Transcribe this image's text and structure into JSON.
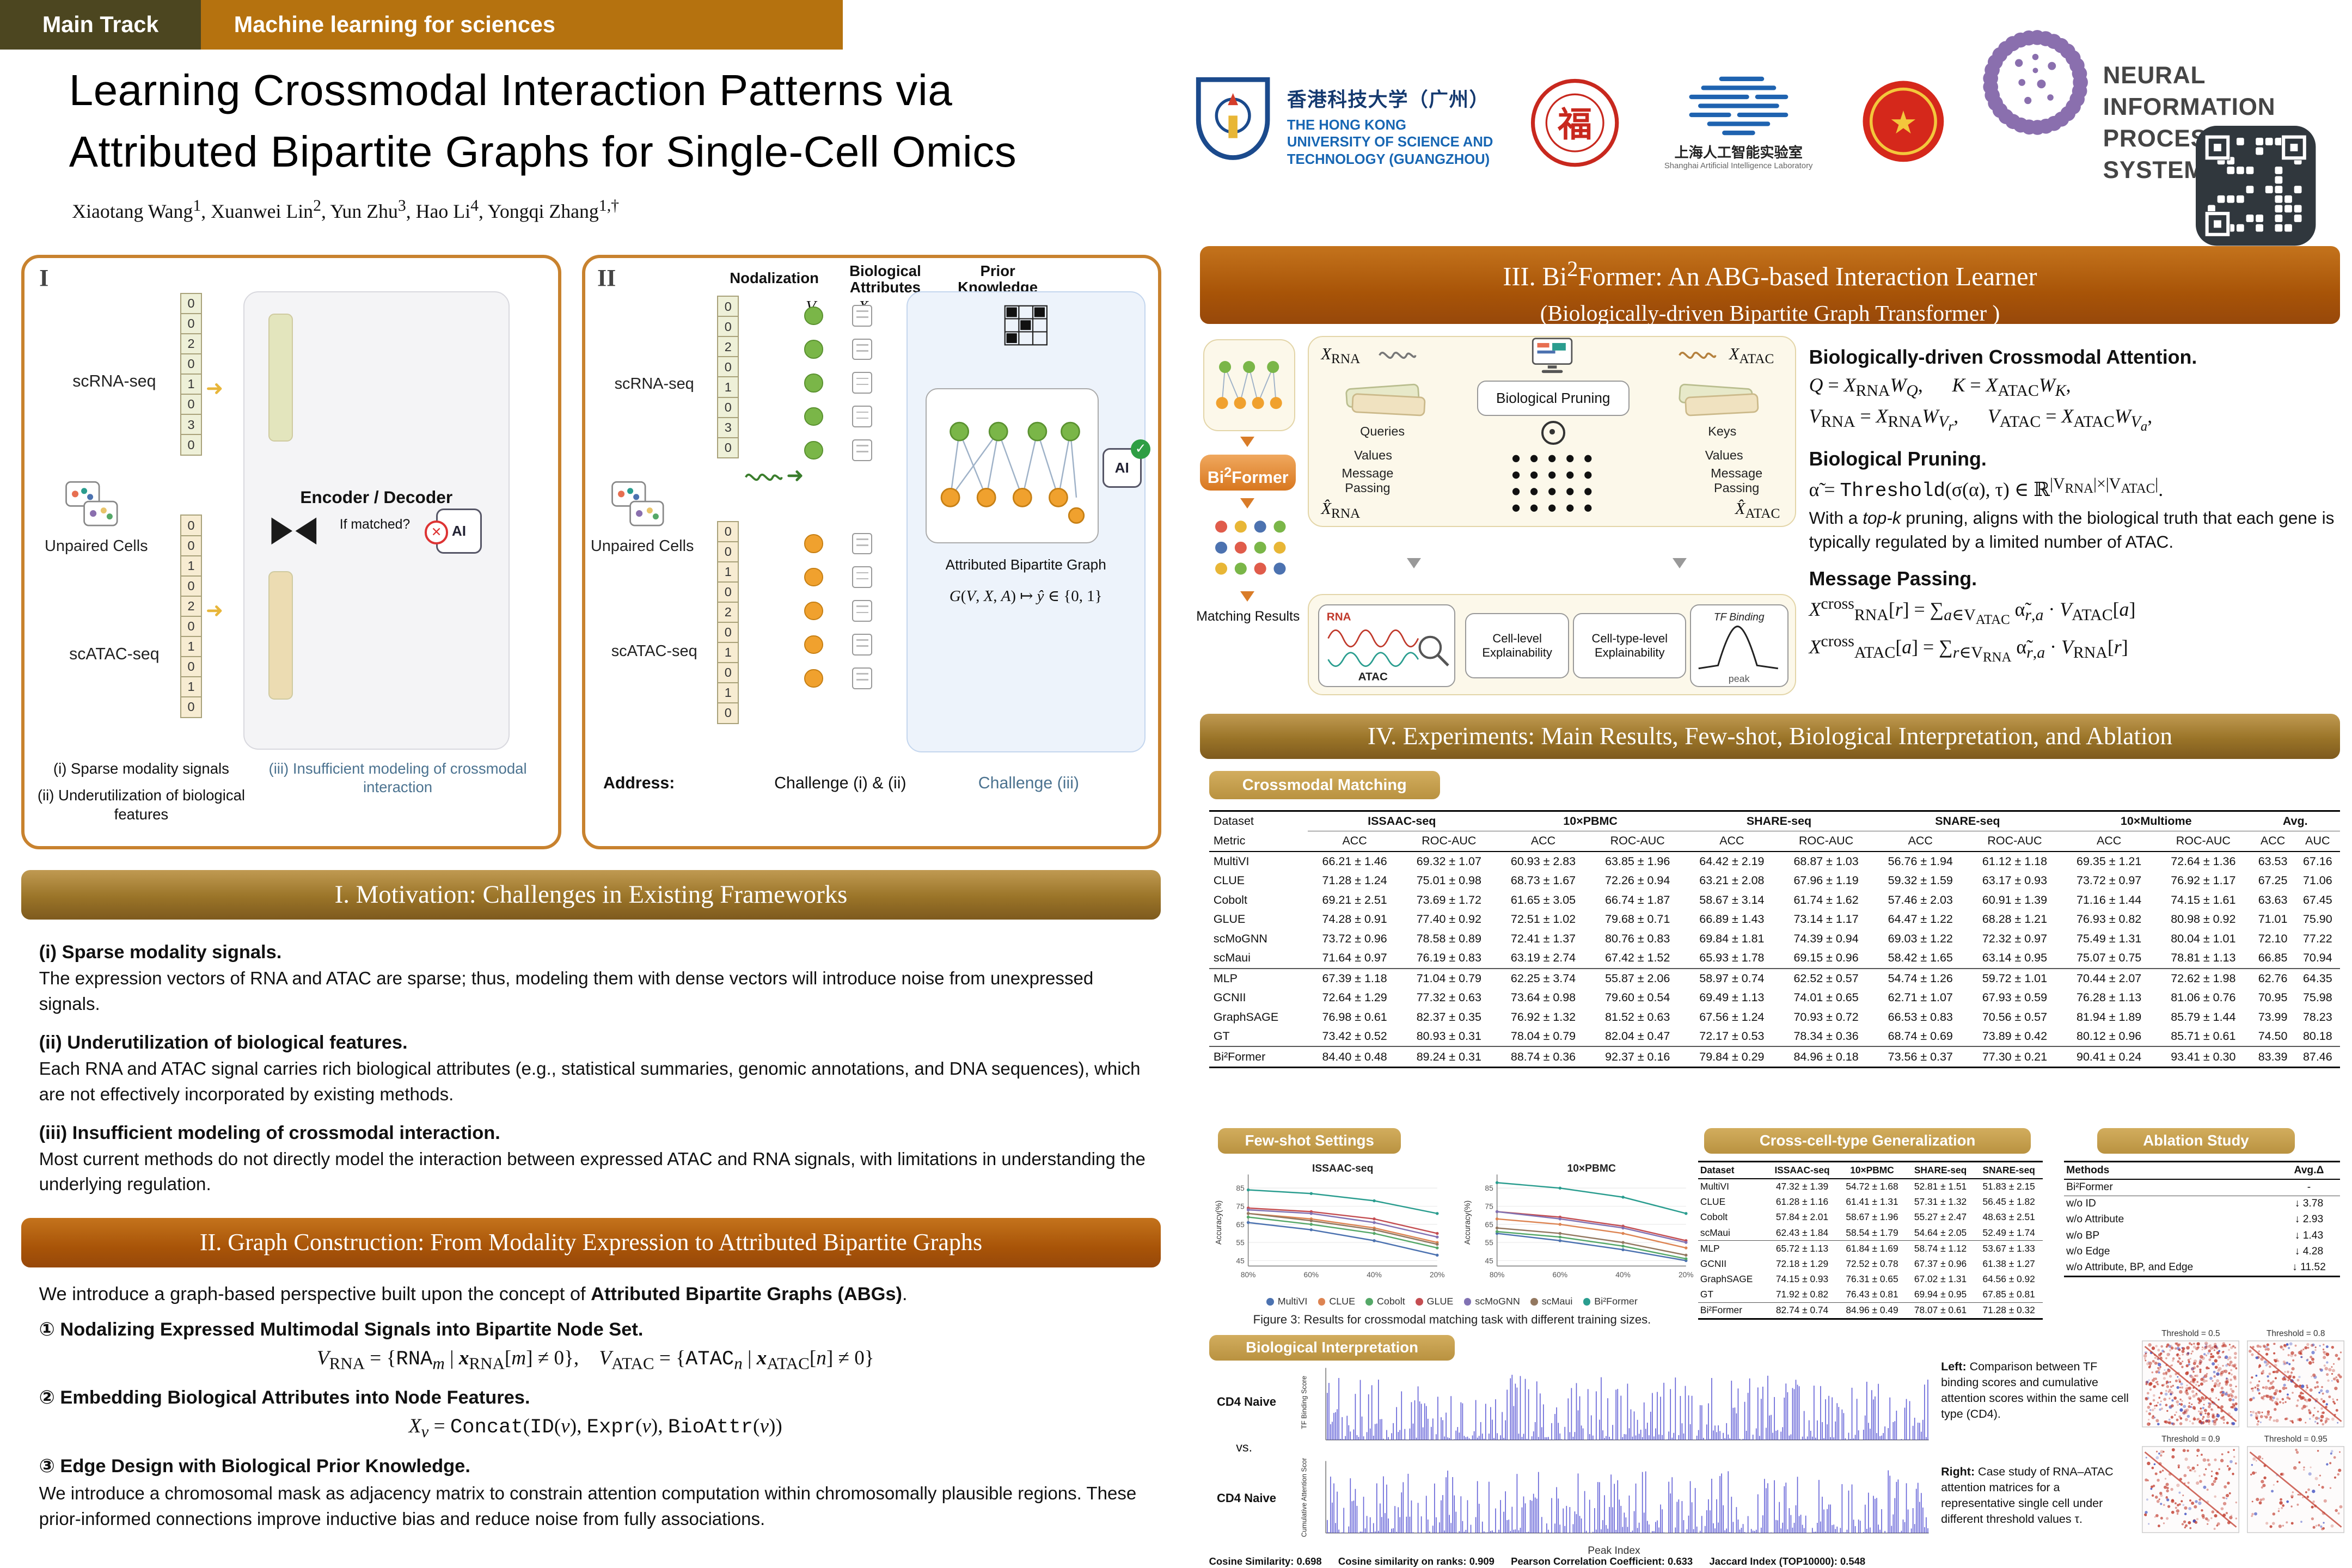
{
  "meta": {
    "accent_bronze": "#9a7428",
    "accent_rust": "#a85408",
    "badge_tan": "#c9a456",
    "signal_blue": "#3d3bcd",
    "heat_red": "#c0392b",
    "heat_blue": "#3b4cc0"
  },
  "header": {
    "track_badge": "Main Track",
    "topic_badge": "Machine learning for sciences",
    "title_line1": "Learning Crossmodal Interaction Patterns via",
    "title_line2": "Attributed Bipartite Graphs for Single-Cell Omics",
    "authors_html": "Xiaotang Wang<sup>1</sup>, Xuanwei Lin<sup>2</sup>, Yun Zhu<sup>3</sup>, Hao Li<sup>4</sup>, Yongqi Zhang<sup>1,†</sup>",
    "hkust": {
      "cn": "香港科技大学（广州）",
      "en1": "THE HONG KONG",
      "en2": "UNIVERSITY OF SCIENCE AND",
      "en3": "TECHNOLOGY (GUANGZHOU)"
    },
    "shailab": {
      "cn": "上海人工智能实验室",
      "en": "Shanghai Artificial Intelligence Laboratory"
    },
    "neurips": {
      "line1": "NEURAL INFORMATION",
      "line2": "PROCESSING SYSTEMS"
    }
  },
  "panel1": {
    "numeral": "I",
    "rna_label": "scRNA-seq",
    "atac_label": "scATAC-seq",
    "unpaired_label": "Unpaired Cells",
    "rna_vector": [
      "0",
      "0",
      "2",
      "0",
      "1",
      "0",
      "3",
      "0"
    ],
    "atac_vector": [
      "0",
      "0",
      "1",
      "0",
      "2",
      "0",
      "1",
      "0",
      "1",
      "0"
    ],
    "encoder_label": "Encoder / Decoder",
    "if_matched": "If matched?",
    "ai_label": "AI",
    "captions": {
      "c1": "(i) Sparse modality signals",
      "c2": "(ii) Underutilization of biological features",
      "c3": "(iii) Insufficient modeling of crossmodal interaction"
    }
  },
  "panel2": {
    "numeral": "II",
    "col1": "Nodalization",
    "col2a": "Biological",
    "col2b": "Attributes",
    "col3a": "Prior",
    "col3b": "Knowledge",
    "v_label": "V",
    "x_label": "X",
    "a_label": "A",
    "rna_label": "scRNA-seq",
    "atac_label": "scATAC-seq",
    "unpaired_label": "Unpaired Cells",
    "rna_vector": [
      "0",
      "0",
      "2",
      "0",
      "1",
      "0",
      "3",
      "0"
    ],
    "atac_vector": [
      "0",
      "0",
      "1",
      "0",
      "2",
      "0",
      "1",
      "0",
      "1",
      "0"
    ],
    "abg_label": "Attributed Bipartite Graph",
    "mapping_html": "<i>G</i>(<i>V</i>, <i>X</i>, <i>A</i>) ↦ <i>ŷ</i> ∈ {0, 1}",
    "ai_label": "AI",
    "address_label": "Address:",
    "challenge12": "Challenge (i) & (ii)",
    "challenge3": "Challenge (iii)"
  },
  "motivation": {
    "title": "I. Motivation: Challenges in Existing Frameworks",
    "items": [
      {
        "head": "(i)   Sparse modality signals.",
        "body": "The expression vectors of RNA and ATAC are sparse; thus, modeling them with dense vectors will introduce noise from unexpressed signals."
      },
      {
        "head": "(ii) Underutilization of biological features.",
        "body": "Each RNA and ATAC signal carries rich biological attributes (e.g., statistical summaries, genomic annotations, and DNA sequences), which are not effectively incorporated by existing methods."
      },
      {
        "head": "(iii) Insufficient modeling of crossmodal interaction.",
        "body": "Most current methods do not directly model the interaction between expressed ATAC and RNA signals, with limitations in understanding the underlying regulation."
      }
    ]
  },
  "graph_construction": {
    "title": "II. Graph Construction: From Modality Expression to Attributed Bipartite Graphs",
    "intro_html": "We introduce a graph-based perspective built upon the concept of <b>Attributed Bipartite Graphs (ABGs)</b>.",
    "steps": [
      {
        "num": "①",
        "head": "Nodalizing Expressed Multimodal Signals into Bipartite Node Set.",
        "formula_html": "<i>V</i><sub>RNA</sub> = {<span class='mono'>RNA</span><sub><i>m</i></sub> | <b><i>x</i></b><sub>RNA</sub>[<i>m</i>] ≠ 0},&emsp;<i>V</i><sub>ATAC</sub> = {<span class='mono'>ATAC</span><sub><i>n</i></sub> | <b><i>x</i></b><sub>ATAC</sub>[<i>n</i>] ≠ 0}"
      },
      {
        "num": "②",
        "head": "Embedding Biological Attributes into Node Features.",
        "formula_html": "<i>X</i><sub><i>v</i></sub> = <span class='mono'>Concat</span>(<span class='mono'>ID</span>(<i>v</i>), <span class='mono'>Expr</span>(<i>v</i>), <span class='mono'>BioAttr</span>(<i>v</i>))"
      },
      {
        "num": "③",
        "head": "Edge Design with Biological Prior Knowledge.",
        "body": "We introduce a chromosomal mask as adjacency matrix to constrain attention computation within chromosomally plausible regions. These prior-informed connections improve inductive bias and reduce noise from fully associations."
      }
    ]
  },
  "bi2former": {
    "title_line1_html": "III. Bi<sup>2</sup>Former: An ABG-based Interaction Learner",
    "title_line2": "(Biologically-driven Bipartite Graph Transformer )",
    "badge_html": "Bi<sup>2</sup>Former",
    "matching_results": "Matching Results",
    "x_rna_html": "<i>X</i><sub>RNA</sub>",
    "x_atac_html": "<i>X</i><sub>ATAC</sub>",
    "pruning_box": "Biological Pruning",
    "queries": "Queries",
    "keys": "Keys",
    "values_left": "Values",
    "values_right": "Values",
    "mp_left": "Message Passing",
    "mp_right": "Message Passing",
    "xhat_rna_html": "<i>X̂</i><sub>RNA</sub>",
    "xhat_atac_html": "<i>X̂</i><sub>ATAC</sub>",
    "rna_chart": "RNA",
    "atac_chart": "ATAC",
    "cell_level": "Cell-level Explainability",
    "cell_type_level": "Cell-type-level Explainability",
    "tf_binding": "TF Binding",
    "peak": "peak",
    "attention": {
      "head1": "Biologically-driven Crossmodal Attention.",
      "f1_html": "<i>Q</i> = <i>X</i><sub>RNA</sub><i>W</i><sub><i>Q</i></sub>,&emsp;&ensp;<i>K</i> = <i>X</i><sub>ATAC</sub><i>W</i><sub><i>K</i></sub>,",
      "f2_html": "<i>V</i><sub>RNA</sub> = <i>X</i><sub>RNA</sub><i>W</i><sub><i>V<sub>r</sub></i></sub>,&emsp;&ensp;<i>V</i><sub>ATAC</sub> = <i>X</i><sub>ATAC</sub><i>W</i><sub><i>V<sub>a</sub></i></sub>,",
      "head2": "Biological Pruning.",
      "f3_html": "α̃ = <span class='mono'>Threshold</span>(σ(α), τ) ∈ ℝ<sup>|V<sub>RNA</sub>|×|V<sub>ATAC</sub>|</sup>.",
      "body2_html": "With a <i>top-k</i> pruning, aligns with the biological truth that each gene is typically regulated by a limited number of ATAC.",
      "head3": "Message Passing.",
      "f4_html": "<i>X</i><sup>cross</sup><sub>RNA</sub>[<i>r</i>] = ∑<sub><i>a</i>∈V<sub>ATAC</sub></sub> α̃<sub><i>r</i>,<i>a</i></sub> · <i>V</i><sub>ATAC</sub>[<i>a</i>]",
      "f5_html": "<i>X</i><sup>cross</sup><sub>ATAC</sub>[<i>a</i>] = ∑<sub><i>r</i>∈V<sub>RNA</sub></sub> α̃<sub><i>r</i>,<i>a</i></sub> · <i>V</i><sub>RNA</sub>[<i>r</i>]"
    }
  },
  "experiments": {
    "title": "IV. Experiments: Main Results, Few-shot, Biological Interpretation, and Ablation",
    "crossmodal_badge": "Crossmodal Matching",
    "main_table": {
      "corner1": "Dataset",
      "corner2": "Metric",
      "datasets": [
        "ISSAAC-seq",
        "10×PBMC",
        "SHARE-seq",
        "SNARE-seq",
        "10×Multiome"
      ],
      "avg_label": "Avg.",
      "metrics": [
        "ACC",
        "ROC-AUC"
      ],
      "avg_metrics": [
        "ACC",
        "AUC"
      ],
      "groups": [
        {
          "rows": [
            {
              "name": "MultiVI",
              "vals": [
                "66.21 ± 1.46",
                "69.32 ± 1.07",
                "60.93 ± 2.83",
                "63.85 ± 1.96",
                "64.42 ± 2.19",
                "68.87 ± 1.03",
                "56.76 ± 1.94",
                "61.12 ± 1.18",
                "69.35 ± 1.21",
                "72.64 ± 1.36",
                "63.53",
                "67.16"
              ]
            },
            {
              "name": "CLUE",
              "vals": [
                "71.28 ± 1.24",
                "75.01 ± 0.98",
                "68.73 ± 1.67",
                "72.26 ± 0.94",
                "63.21 ± 2.08",
                "67.96 ± 1.19",
                "59.32 ± 1.59",
                "63.17 ± 0.93",
                "73.72 ± 0.97",
                "76.92 ± 1.17",
                "67.25",
                "71.06"
              ]
            },
            {
              "name": "Cobolt",
              "vals": [
                "69.21 ± 2.51",
                "73.69 ± 1.72",
                "61.65 ± 3.05",
                "66.74 ± 1.87",
                "58.67 ± 3.14",
                "61.74 ± 1.62",
                "57.46 ± 2.03",
                "60.91 ± 1.39",
                "71.16 ± 1.44",
                "74.15 ± 1.61",
                "63.63",
                "67.45"
              ]
            },
            {
              "name": "GLUE",
              "vals": [
                "74.28 ± 0.91",
                "77.40 ± 0.92",
                "72.51 ± 1.02",
                "79.68 ± 0.71",
                "66.89 ± 1.43",
                "73.14 ± 1.17",
                "64.47 ± 1.22",
                "68.28 ± 1.21",
                "76.93 ± 0.82",
                "80.98 ± 0.92",
                "71.01",
                "75.90"
              ]
            },
            {
              "name": "scMoGNN",
              "vals": [
                "73.72 ± 0.96",
                "78.58 ± 0.89",
                "72.41 ± 1.37",
                "80.76 ± 0.83",
                "69.84 ± 1.81",
                "74.39 ± 0.94",
                "69.03 ± 1.22",
                "72.32 ± 0.97",
                "75.49 ± 1.31",
                "80.04 ± 1.01",
                "72.10",
                "77.22"
              ]
            },
            {
              "name": "scMaui",
              "vals": [
                "71.64 ± 0.97",
                "76.19 ± 0.83",
                "63.19 ± 2.74",
                "67.42 ± 1.52",
                "65.93 ± 1.78",
                "69.15 ± 0.96",
                "58.42 ± 1.65",
                "63.14 ± 0.95",
                "75.07 ± 0.75",
                "78.81 ± 1.13",
                "66.85",
                "70.94"
              ]
            }
          ]
        },
        {
          "rows": [
            {
              "name": "MLP",
              "vals": [
                "67.39 ± 1.18",
                "71.04 ± 0.79",
                "62.25 ± 3.74",
                "55.87 ± 2.06",
                "58.97 ± 0.74",
                "62.52 ± 0.57",
                "54.74 ± 1.26",
                "59.72 ± 1.01",
                "70.44 ± 2.07",
                "72.62 ± 1.98",
                "62.76",
                "64.35"
              ]
            },
            {
              "name": "GCNII",
              "vals": [
                "72.64 ± 1.29",
                "77.32 ± 0.63",
                "73.64 ± 0.98",
                "79.60 ± 0.54",
                "69.49 ± 1.13",
                "74.01 ± 0.65",
                "62.71 ± 1.07",
                "67.93 ± 0.59",
                "76.28 ± 1.13",
                "81.06 ± 0.76",
                "70.95",
                "75.98"
              ]
            },
            {
              "name": "GraphSAGE",
              "vals": [
                "76.98 ± 0.61",
                "82.37 ± 0.35",
                "76.92 ± 1.32",
                "81.52 ± 0.63",
                "67.56 ± 1.24",
                "70.93 ± 0.72",
                "66.53 ± 0.83",
                "70.56 ± 0.57",
                "81.94 ± 1.89",
                "85.79 ± 1.44",
                "73.99",
                "78.23"
              ]
            },
            {
              "name": "GT",
              "vals": [
                "73.42 ± 0.52",
                "80.93 ± 0.31",
                "78.04 ± 0.79",
                "82.04 ± 0.47",
                "72.17 ± 0.53",
                "78.34 ± 0.36",
                "68.74 ± 0.69",
                "73.89 ± 0.42",
                "80.12 ± 0.96",
                "85.71 ± 0.61",
                "74.50",
                "80.18"
              ]
            }
          ]
        },
        {
          "bold": true,
          "rows": [
            {
              "name": "Bi²Former",
              "vals": [
                "84.40 ± 0.48",
                "89.24 ± 0.31",
                "88.74 ± 0.36",
                "92.37 ± 0.16",
                "79.84 ± 0.29",
                "84.96 ± 0.18",
                "73.56 ± 0.37",
                "77.30 ± 0.21",
                "90.41 ± 0.24",
                "93.41 ± 0.30",
                "83.39",
                "87.46"
              ]
            }
          ]
        }
      ]
    },
    "fewshot": {
      "badge": "Few-shot Settings",
      "ylabel": "Accuracy(%)",
      "legend": [
        "MultiVI",
        "CLUE",
        "Cobolt",
        "GLUE",
        "scMoGNN",
        "scMaui",
        "Bi²Former"
      ],
      "colors": [
        "#4c72b0",
        "#dd8452",
        "#55a868",
        "#c44e52",
        "#8172b3",
        "#937860",
        "#2a9d8f"
      ],
      "caption": "Figure 3: Results for crossmodal matching task with different training sizes."
    },
    "crosscell": {
      "badge": "Cross-cell-type Generalization",
      "headers": [
        "Dataset",
        "ISSAAC-seq",
        "10×PBMC",
        "SHARE-seq",
        "SNARE-seq"
      ],
      "rows": [
        [
          "MultiVI",
          "47.32 ± 1.39",
          "54.72 ± 1.68",
          "52.81 ± 1.51",
          "51.83 ± 2.15"
        ],
        [
          "CLUE",
          "61.28 ± 1.16",
          "61.41 ± 1.31",
          "57.31 ± 1.32",
          "56.45 ± 1.82"
        ],
        [
          "Cobolt",
          "57.84 ± 2.01",
          "58.67 ± 1.96",
          "55.27 ± 2.47",
          "48.63 ± 2.51"
        ],
        [
          "scMaui",
          "62.43 ± 1.84",
          "58.54 ± 1.79",
          "54.64 ± 2.05",
          "52.49 ± 1.74"
        ],
        [
          "MLP",
          "65.72 ± 1.13",
          "61.84 ± 1.69",
          "58.74 ± 1.12",
          "53.67 ± 1.33"
        ],
        [
          "GCNII",
          "72.18 ± 1.29",
          "72.52 ± 0.78",
          "67.37 ± 0.96",
          "61.38 ± 1.27"
        ],
        [
          "GraphSAGE",
          "74.15 ± 0.93",
          "76.31 ± 0.65",
          "67.02 ± 1.31",
          "64.56 ± 0.92"
        ],
        [
          "GT",
          "71.92 ± 0.82",
          "76.43 ± 0.81",
          "69.94 ± 0.95",
          "67.85 ± 0.81"
        ],
        [
          "Bi²Former",
          "82.74 ± 0.74",
          "84.96 ± 0.49",
          "78.07 ± 0.61",
          "71.28 ± 0.32"
        ]
      ]
    },
    "ablation": {
      "badge": "Ablation Study",
      "headers": [
        "Methods",
        "Avg.Δ"
      ],
      "rows": [
        [
          "Bi²Former",
          "-"
        ],
        [
          "w/o ID",
          "↓ 3.78"
        ],
        [
          "w/o Attribute",
          "↓ 2.93"
        ],
        [
          "w/o BP",
          "↓ 1.43"
        ],
        [
          "w/o Edge",
          "↓ 4.28"
        ],
        [
          "w/o Attribute, BP, and Edge",
          "↓ 11.52"
        ]
      ]
    },
    "biointerp": {
      "badge": "Biological Interpretation",
      "cell_label_top": "CD4 Naive",
      "vs": "vs.",
      "cell_label_bottom": "CD4 Naive",
      "ylabel_top": "TF Binding Score",
      "ylabel_bottom": "Cumulative Attention Score",
      "xlabel": "Peak Index",
      "left_note_html": "<b>Left:</b> Comparison between TF binding scores and cumulative attention scores within the same cell type (CD4).",
      "right_note_html": "<b>Right:</b> Case study of RNA–ATAC attention matrices for a representative single cell under different threshold values τ.",
      "thresholds": [
        "Threshold = 0.5",
        "Threshold = 0.8",
        "Threshold = 0.9",
        "Threshold = 0.95"
      ],
      "metrics": [
        "Cosine Similarity: 0.698",
        "Cosine similarity on ranks: 0.909",
        "Pearson Correlation Coefficient: 0.633",
        "Jaccard Index (TOP10000): 0.548"
      ]
    }
  },
  "chart_data": [
    {
      "type": "line",
      "title": "ISSAAC-seq",
      "x": [
        "80%",
        "60%",
        "40%",
        "20%"
      ],
      "xlabel": "",
      "ylabel": "Accuracy(%)",
      "ylim": [
        42,
        90
      ],
      "yticks": [
        45,
        55,
        65,
        75,
        85
      ],
      "grid": true,
      "legend_position": "below",
      "series": [
        {
          "name": "MultiVI",
          "values": [
            66,
            62,
            56,
            48
          ]
        },
        {
          "name": "CLUE",
          "values": [
            71,
            68,
            63,
            55
          ]
        },
        {
          "name": "Cobolt",
          "values": [
            69,
            65,
            60,
            52
          ]
        },
        {
          "name": "GLUE",
          "values": [
            74,
            72,
            68,
            60
          ]
        },
        {
          "name": "scMoGNN",
          "values": [
            73,
            71,
            66,
            58
          ]
        },
        {
          "name": "scMaui",
          "values": [
            71,
            67,
            62,
            54
          ]
        },
        {
          "name": "Bi²Former",
          "values": [
            84,
            82,
            78,
            71
          ]
        }
      ]
    },
    {
      "type": "line",
      "title": "10×PBMC",
      "x": [
        "80%",
        "60%",
        "40%",
        "20%"
      ],
      "xlabel": "",
      "ylabel": "Accuracy(%)",
      "ylim": [
        42,
        90
      ],
      "yticks": [
        45,
        55,
        65,
        75,
        85
      ],
      "grid": true,
      "legend_position": "below",
      "series": [
        {
          "name": "MultiVI",
          "values": [
            60,
            56,
            51,
            45
          ]
        },
        {
          "name": "CLUE",
          "values": [
            68,
            65,
            60,
            52
          ]
        },
        {
          "name": "Cobolt",
          "values": [
            61,
            58,
            53,
            46
          ]
        },
        {
          "name": "GLUE",
          "values": [
            72,
            69,
            64,
            56
          ]
        },
        {
          "name": "scMoGNN",
          "values": [
            72,
            68,
            63,
            55
          ]
        },
        {
          "name": "scMaui",
          "values": [
            63,
            60,
            55,
            48
          ]
        },
        {
          "name": "Bi²Former",
          "values": [
            88,
            85,
            80,
            71
          ]
        }
      ]
    }
  ]
}
